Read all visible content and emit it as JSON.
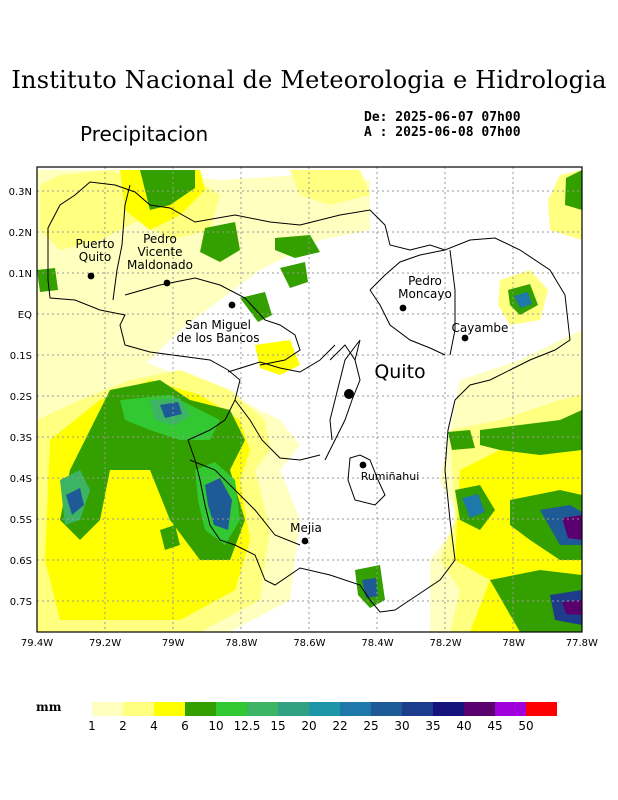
{
  "header": {
    "title": "Instituto Nacional de Meteorologia e Hidrologia",
    "subtitle": "Precipitacion",
    "date_from": "De: 2025-06-07 07h00",
    "date_to": "A : 2025-06-08 07h00"
  },
  "map": {
    "lat_ticks": [
      "0.3N",
      "0.2N",
      "0.1N",
      "EQ",
      "0.1S",
      "0.2S",
      "0.3S",
      "0.4S",
      "0.5S",
      "0.6S",
      "0.7S"
    ],
    "lon_ticks": [
      "79.4W",
      "79.2W",
      "79W",
      "78.8W",
      "78.6W",
      "78.4W",
      "78.2W",
      "78W",
      "77.8W"
    ],
    "places": [
      {
        "name_lines": [
          "Puerto",
          "Quito"
        ],
        "key": "puerto-quito"
      },
      {
        "name_lines": [
          "Pedro",
          "Vicente",
          "Maldonado"
        ],
        "key": "pedro-vicente-maldonado"
      },
      {
        "name_lines": [
          "San Miguel",
          "de los Bancos"
        ],
        "key": "san-miguel-de-los-bancos"
      },
      {
        "name_lines": [
          "Pedro",
          "Moncayo"
        ],
        "key": "pedro-moncayo"
      },
      {
        "name_lines": [
          "Cayambe"
        ],
        "key": "cayambe"
      },
      {
        "name_lines": [
          "Quito"
        ],
        "key": "quito"
      },
      {
        "name_lines": [
          "Rumiñahui"
        ],
        "key": "ruminahui"
      },
      {
        "name_lines": [
          "Mejia"
        ],
        "key": "mejia"
      }
    ]
  },
  "legend": {
    "unit": "mm",
    "bins": [
      {
        "label": "1",
        "color": "#ffffc0"
      },
      {
        "label": "2",
        "color": "#ffff80"
      },
      {
        "label": "4",
        "color": "#ffff00"
      },
      {
        "label": "6",
        "color": "#33a000"
      },
      {
        "label": "10",
        "color": "#32c832"
      },
      {
        "label": "12.5",
        "color": "#3cb464"
      },
      {
        "label": "15",
        "color": "#32a082"
      },
      {
        "label": "20",
        "color": "#1e96aa"
      },
      {
        "label": "22",
        "color": "#1e78aa"
      },
      {
        "label": "25",
        "color": "#1e5a96"
      },
      {
        "label": "30",
        "color": "#1e3c8c"
      },
      {
        "label": "35",
        "color": "#14147c"
      },
      {
        "label": "40",
        "color": "#5a006e"
      },
      {
        "label": "45",
        "color": "#a000dc"
      },
      {
        "label": "50",
        "color": "#ff0000"
      }
    ]
  }
}
